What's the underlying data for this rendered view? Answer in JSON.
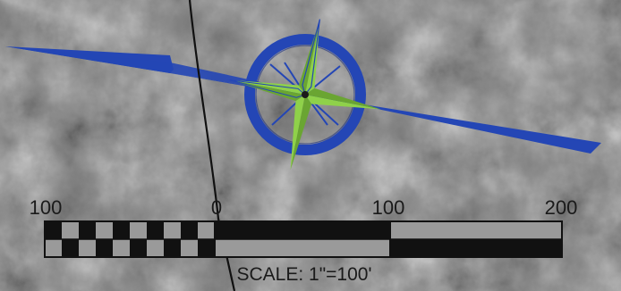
{
  "colors": {
    "terrain_base": "#7b7b7b",
    "compass_ring": "#2446b5",
    "compass_star": "#8fd14a",
    "compass_dark": "#1a1a1a",
    "scale_bar": "#141414",
    "scale_light": "#9a9a9a"
  },
  "icons": {
    "compass": "north-arrow-compass-rose-icon"
  },
  "scale_bar": {
    "labels": {
      "left": "100",
      "zero": "0",
      "mid": "100",
      "right": "200"
    },
    "caption": "SCALE: 1\"=100'"
  }
}
